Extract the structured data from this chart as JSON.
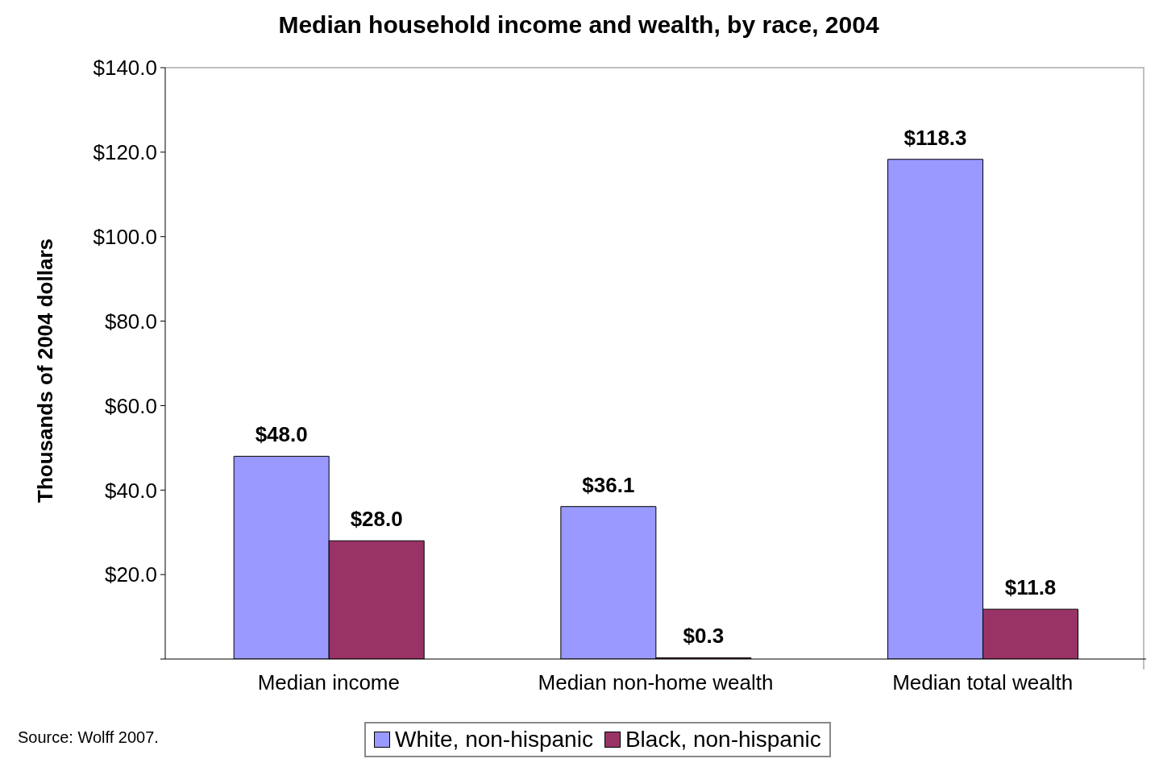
{
  "chart_data": {
    "type": "bar",
    "title": "Median household income and wealth, by race, 2004",
    "ylabel": "Thousands of 2004 dollars",
    "categories": [
      "Median income",
      "Median non-home wealth",
      "Median total wealth"
    ],
    "series": [
      {
        "name": "White, non-hispanic",
        "color": "#9999ff",
        "values": [
          48.0,
          36.1,
          118.3
        ],
        "value_labels": [
          "$48.0",
          "$36.1",
          "$118.3"
        ]
      },
      {
        "name": "Black, non-hispanic",
        "color": "#993366",
        "values": [
          28.0,
          0.3,
          11.8
        ],
        "value_labels": [
          "$28.0",
          "$0.3",
          "$11.8"
        ]
      }
    ],
    "ylim": [
      0,
      140
    ],
    "yticks": [
      {
        "value": 0,
        "label": null
      },
      {
        "value": 20,
        "label": "$20.0"
      },
      {
        "value": 40,
        "label": "$40.0"
      },
      {
        "value": 60,
        "label": "$60.0"
      },
      {
        "value": 80,
        "label": "$80.0"
      },
      {
        "value": 100,
        "label": "$100.0"
      },
      {
        "value": 120,
        "label": "$120.0"
      },
      {
        "value": 140,
        "label": "$140.0"
      }
    ],
    "grid": false,
    "legend": "bottom",
    "annotations": [
      "Source: Wolff 2007."
    ]
  }
}
